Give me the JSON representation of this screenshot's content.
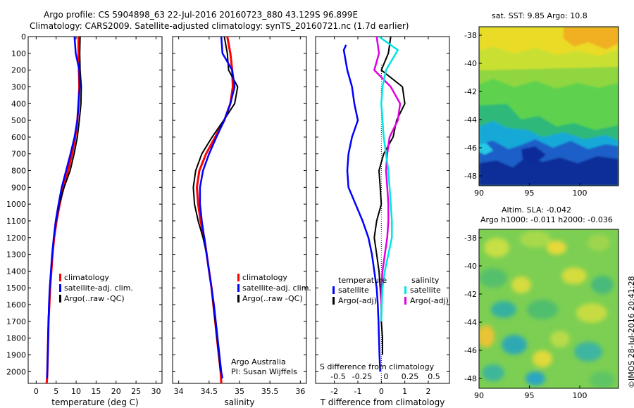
{
  "header": {
    "line1": "Argo profile: CS 5904898_63 22-Jul-2016 20160723_880 43.129S 96.899E",
    "line2": "Climatology: CARS2009. Satellite-adjusted climatology: synTS_20160721.nc (1.7d earlier)"
  },
  "colors": {
    "climatology": "#ff0000",
    "satellite": "#0000ff",
    "argo": "#000000",
    "satellite_s": "#00e5e5",
    "argo_s": "#e000e0"
  },
  "depth_ticks": [
    "0",
    "100",
    "200",
    "300",
    "400",
    "500",
    "600",
    "700",
    "800",
    "900",
    "1000",
    "1100",
    "1200",
    "1300",
    "1400",
    "1500",
    "1600",
    "1700",
    "1800",
    "1900",
    "2000"
  ],
  "legend": {
    "climatology": "climatology",
    "satellite": "satellite-adj. clim.",
    "argo": "Argo(..raw -QC)"
  },
  "diff_legend": {
    "temperature_header": "temperature",
    "salinity_header": "salinity",
    "satellite": "satellite",
    "argo": "Argo(-adj)"
  },
  "credits": {
    "line1": "Argo Australia",
    "line2": "PI: Susan Wijffels"
  },
  "maps": {
    "sst_title": "sat. SST: 9.85 Argo: 10.8",
    "sla_title1": "Altim. SLA: -0.042",
    "sla_title2": "Argo h1000: -0.011 h2000: -0.036",
    "yticks": [
      "-38",
      "-40",
      "-42",
      "-44",
      "-46",
      "-48"
    ],
    "xticks": [
      "90",
      "95",
      "100"
    ],
    "watermark": "©IMOS 28-Jul-2016 20:41:28"
  },
  "chart_data": [
    {
      "type": "line",
      "xlabel": "temperature (deg C)",
      "xticks": [
        "0",
        "5",
        "10",
        "15",
        "20",
        "25",
        "30"
      ],
      "xlim": [
        -2,
        31.5
      ],
      "ylim": [
        0,
        2070
      ],
      "series": [
        {
          "name": "climatology",
          "x": [
            10.6,
            10.6,
            10.7,
            10.8,
            10.6,
            10.3,
            9.8,
            9.0,
            8.0,
            6.8,
            5.9,
            5.1,
            4.5,
            4.1,
            3.8,
            3.5,
            3.3,
            3.1,
            3.0,
            2.9,
            2.8,
            2.7,
            2.6
          ],
          "y": [
            0,
            100,
            200,
            300,
            400,
            500,
            600,
            700,
            800,
            900,
            1000,
            1100,
            1200,
            1300,
            1400,
            1500,
            1600,
            1700,
            1800,
            1900,
            2000,
            2050,
            2070
          ]
        },
        {
          "name": "satellite-adj. clim.",
          "x": [
            9.6,
            9.9,
            10.8,
            10.9,
            10.6,
            10.3,
            9.6,
            8.6,
            7.5,
            6.4,
            5.6,
            4.9,
            4.4,
            4.0,
            3.7,
            3.4,
            3.2,
            3.1,
            3.0,
            2.9,
            2.8,
            2.75
          ],
          "y": [
            0,
            100,
            200,
            300,
            400,
            500,
            600,
            700,
            800,
            900,
            1000,
            1100,
            1200,
            1300,
            1400,
            1500,
            1600,
            1700,
            1800,
            1900,
            2000,
            2040
          ]
        },
        {
          "name": "Argo(..raw -QC)",
          "x": [
            11.0,
            10.9,
            11.0,
            11.3,
            11.2,
            10.8,
            10.3,
            9.5,
            8.5,
            7.0,
            5.8,
            5.0,
            4.4,
            4.0,
            3.7,
            3.4,
            3.2,
            3.05,
            2.95,
            2.85,
            2.8
          ],
          "y": [
            0,
            100,
            200,
            300,
            400,
            500,
            600,
            700,
            800,
            900,
            1000,
            1100,
            1200,
            1300,
            1400,
            1500,
            1600,
            1700,
            1800,
            1900,
            2000
          ]
        }
      ]
    },
    {
      "type": "line",
      "xlabel": "salinity",
      "xticks": [
        "34",
        "34.5",
        "35",
        "35.5",
        "36"
      ],
      "xlim": [
        33.9,
        36.1
      ],
      "ylim": [
        0,
        2070
      ],
      "series": [
        {
          "name": "climatology",
          "x": [
            34.8,
            34.85,
            34.88,
            34.89,
            34.85,
            34.75,
            34.6,
            34.45,
            34.34,
            34.3,
            34.32,
            34.36,
            34.42,
            34.46,
            34.5,
            34.54,
            34.57,
            34.6,
            34.63,
            34.66,
            34.69,
            34.7
          ],
          "y": [
            0,
            100,
            200,
            300,
            400,
            500,
            600,
            700,
            800,
            900,
            1000,
            1100,
            1200,
            1300,
            1400,
            1500,
            1600,
            1700,
            1800,
            1900,
            2000,
            2070
          ]
        },
        {
          "name": "satellite-adj. clim.",
          "x": [
            34.7,
            34.72,
            34.88,
            34.92,
            34.85,
            34.75,
            34.62,
            34.5,
            34.4,
            34.35,
            34.35,
            34.38,
            34.42,
            34.46,
            34.5,
            34.54,
            34.58,
            34.61,
            34.64,
            34.67,
            34.7,
            34.72
          ],
          "y": [
            0,
            100,
            200,
            300,
            400,
            500,
            600,
            700,
            800,
            900,
            1000,
            1100,
            1200,
            1300,
            1400,
            1500,
            1600,
            1700,
            1800,
            1900,
            2000,
            2040
          ]
        },
        {
          "name": "Argo(..raw -QC)",
          "x": [
            34.75,
            34.8,
            34.82,
            34.97,
            34.92,
            34.74,
            34.55,
            34.38,
            34.28,
            34.24,
            34.26,
            34.32,
            34.4,
            34.46,
            34.5,
            34.54,
            34.57,
            34.6,
            34.63,
            34.66,
            34.69
          ],
          "y": [
            0,
            100,
            200,
            300,
            400,
            500,
            600,
            700,
            800,
            900,
            1000,
            1100,
            1200,
            1300,
            1400,
            1500,
            1600,
            1700,
            1800,
            1900,
            2000
          ]
        }
      ]
    },
    {
      "type": "line",
      "xlabel": "T difference from climatology",
      "xlabel_top": "S difference from climatology",
      "xticks": [
        "-2",
        "-1",
        "0",
        "1",
        "2"
      ],
      "xticks_top": [
        "-0.5",
        "-0.25",
        "0",
        "0.25",
        "0.5"
      ],
      "xlim": [
        -2.8,
        2.9
      ],
      "ylim": [
        0,
        2070
      ],
      "series": [
        {
          "name": "temperature satellite",
          "x": [
            -1.5,
            -1.6,
            -1.45,
            -1.25,
            -1.15,
            -1.0,
            -1.25,
            -1.4,
            -1.45,
            -1.4,
            -1.1,
            -0.8,
            -0.55,
            -0.4,
            -0.3,
            -0.2,
            -0.15,
            -0.12,
            -0.1,
            -0.08,
            -0.05
          ],
          "y": [
            50,
            80,
            200,
            300,
            400,
            500,
            600,
            700,
            800,
            900,
            1000,
            1100,
            1200,
            1300,
            1400,
            1500,
            1600,
            1700,
            1800,
            1900,
            2000
          ]
        },
        {
          "name": "temperature Argo(-adj)",
          "x": [
            0.4,
            0.3,
            0.0,
            0.9,
            1.0,
            0.65,
            0.5,
            0.1,
            -0.1,
            -0.05,
            0.0,
            -0.2,
            -0.3,
            -0.2,
            -0.1,
            -0.05,
            0.0,
            0.0,
            0.05,
            0.05
          ],
          "y": [
            0,
            100,
            200,
            300,
            400,
            500,
            600,
            700,
            800,
            900,
            1000,
            1100,
            1200,
            1300,
            1400,
            1500,
            1600,
            1700,
            1800,
            1900
          ]
        },
        {
          "name": "salinity satellite",
          "x": [
            -0.1,
            0.7,
            0.2,
            0.05,
            0.0,
            0.05,
            0.1,
            0.2,
            0.3,
            0.35,
            0.4,
            0.45,
            0.45,
            0.3,
            0.15,
            0.05,
            0.02,
            0.0
          ],
          "y": [
            0,
            80,
            200,
            300,
            400,
            500,
            600,
            700,
            800,
            900,
            1000,
            1100,
            1200,
            1300,
            1400,
            1500,
            1600,
            1700
          ]
        },
        {
          "name": "salinity Argo(-adj)",
          "x": [
            -0.2,
            -0.1,
            -0.3,
            0.4,
            0.8,
            0.7,
            0.35,
            0.25,
            0.2,
            0.25,
            0.3,
            0.3,
            0.25,
            0.15,
            0.05,
            0.0,
            0.0
          ],
          "y": [
            0,
            100,
            200,
            300,
            400,
            500,
            600,
            700,
            800,
            900,
            1000,
            1100,
            1200,
            1300,
            1400,
            1500,
            1600
          ]
        }
      ]
    }
  ]
}
